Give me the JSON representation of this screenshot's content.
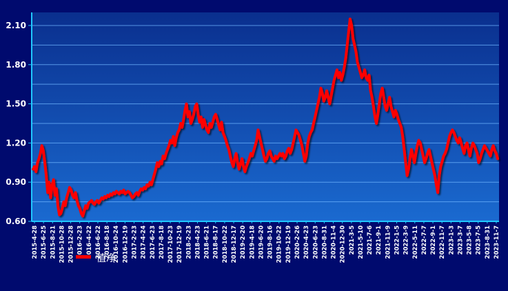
{
  "chart_data": {
    "type": "line",
    "ylim": [
      0.6,
      2.2
    ],
    "y_ticks": [
      "0.60",
      "0.90",
      "1.20",
      "1.50",
      "1.80",
      "2.10"
    ],
    "grid": true,
    "legend_position": "bottom-left",
    "colors": {
      "line": "#ff0000",
      "background": "#000a6e",
      "plot_area": "#0e4fb0",
      "axis": "#20c8ff",
      "text": "#ffffff"
    },
    "x_tick_labels": [
      "2015-4-28",
      "2015-6-25",
      "2015-8-21",
      "2015-10-28",
      "2015-12-28",
      "2016-2-23",
      "2016-4-22",
      "2016-6-22",
      "2016-8-18",
      "2016-10-24",
      "2016-12-19",
      "2017-2-23",
      "2017-4-24",
      "2017-6-23",
      "2017-8-18",
      "2017-10-23",
      "2017-12-19",
      "2018-2-23",
      "2018-4-23",
      "2018-6-21",
      "2018-8-17",
      "2018-10-22",
      "2018-12-17",
      "2019-2-20",
      "2019-4-18",
      "2019-6-20",
      "2019-8-16",
      "2019-10-22",
      "2019-12-19",
      "2020-2-26",
      "2020-4-23",
      "2020-6-23",
      "2020-8-31",
      "2020-11-4",
      "2020-12-30",
      "2021-3-5",
      "2021-5-10",
      "2021-7-6",
      "2021-9-1",
      "2021-11-9",
      "2022-1-5",
      "2022-3-9",
      "2022-5-11",
      "2022-7-7",
      "2022-9-1",
      "2022-11-7",
      "2023-1-3",
      "2023-3-7",
      "2023-5-8",
      "2023-7-5",
      "2023-8-31",
      "2023-11-7"
    ],
    "series": [
      {
        "name": "值净",
        "values": [
          1.0,
          1.02,
          0.98,
          1.05,
          1.08,
          1.12,
          1.18,
          1.14,
          1.05,
          0.95,
          0.82,
          0.9,
          0.78,
          0.88,
          0.92,
          0.8,
          0.85,
          0.72,
          0.65,
          0.66,
          0.7,
          0.75,
          0.72,
          0.78,
          0.82,
          0.86,
          0.84,
          0.8,
          0.78,
          0.82,
          0.76,
          0.72,
          0.7,
          0.66,
          0.64,
          0.68,
          0.72,
          0.7,
          0.74,
          0.75,
          0.76,
          0.74,
          0.73,
          0.75,
          0.76,
          0.74,
          0.76,
          0.78,
          0.77,
          0.79,
          0.78,
          0.8,
          0.79,
          0.81,
          0.8,
          0.82,
          0.81,
          0.83,
          0.82,
          0.81,
          0.83,
          0.82,
          0.84,
          0.81,
          0.82,
          0.83,
          0.82,
          0.8,
          0.78,
          0.79,
          0.81,
          0.82,
          0.8,
          0.83,
          0.85,
          0.84,
          0.86,
          0.85,
          0.88,
          0.87,
          0.9,
          0.88,
          0.92,
          0.96,
          1.0,
          1.05,
          1.02,
          1.06,
          1.04,
          1.1,
          1.08,
          1.12,
          1.15,
          1.18,
          1.22,
          1.2,
          1.25,
          1.18,
          1.24,
          1.28,
          1.3,
          1.35,
          1.32,
          1.38,
          1.45,
          1.5,
          1.4,
          1.44,
          1.35,
          1.38,
          1.42,
          1.48,
          1.5,
          1.42,
          1.36,
          1.4,
          1.32,
          1.38,
          1.34,
          1.3,
          1.28,
          1.35,
          1.32,
          1.36,
          1.4,
          1.42,
          1.38,
          1.34,
          1.3,
          1.36,
          1.28,
          1.25,
          1.22,
          1.18,
          1.15,
          1.1,
          1.05,
          1.02,
          1.08,
          1.12,
          1.05,
          1.0,
          1.04,
          1.08,
          1.02,
          0.98,
          1.02,
          1.05,
          1.08,
          1.12,
          1.1,
          1.14,
          1.18,
          1.22,
          1.3,
          1.25,
          1.2,
          1.15,
          1.1,
          1.06,
          1.08,
          1.12,
          1.14,
          1.1,
          1.08,
          1.06,
          1.1,
          1.08,
          1.1,
          1.12,
          1.1,
          1.12,
          1.08,
          1.1,
          1.14,
          1.16,
          1.12,
          1.15,
          1.2,
          1.25,
          1.3,
          1.28,
          1.26,
          1.22,
          1.18,
          1.12,
          1.06,
          1.1,
          1.2,
          1.25,
          1.28,
          1.3,
          1.35,
          1.4,
          1.45,
          1.5,
          1.55,
          1.62,
          1.58,
          1.52,
          1.55,
          1.6,
          1.55,
          1.5,
          1.56,
          1.62,
          1.68,
          1.72,
          1.76,
          1.7,
          1.74,
          1.68,
          1.72,
          1.78,
          1.85,
          1.95,
          2.05,
          2.15,
          2.1,
          2.0,
          1.95,
          1.9,
          1.82,
          1.78,
          1.74,
          1.7,
          1.72,
          1.76,
          1.7,
          1.68,
          1.72,
          1.6,
          1.55,
          1.48,
          1.4,
          1.35,
          1.42,
          1.5,
          1.58,
          1.62,
          1.55,
          1.48,
          1.45,
          1.5,
          1.55,
          1.48,
          1.44,
          1.4,
          1.45,
          1.42,
          1.38,
          1.35,
          1.32,
          1.25,
          1.15,
          1.05,
          0.95,
          1.0,
          1.08,
          1.15,
          1.1,
          1.05,
          1.12,
          1.18,
          1.22,
          1.2,
          1.15,
          1.1,
          1.05,
          1.08,
          1.12,
          1.15,
          1.1,
          1.05,
          1.0,
          0.95,
          0.88,
          0.82,
          0.95,
          1.02,
          1.06,
          1.1,
          1.12,
          1.15,
          1.2,
          1.25,
          1.28,
          1.3,
          1.28,
          1.25,
          1.22,
          1.2,
          1.24,
          1.2,
          1.16,
          1.12,
          1.18,
          1.2,
          1.15,
          1.1,
          1.16,
          1.2,
          1.18,
          1.15,
          1.12,
          1.05,
          1.08,
          1.12,
          1.15,
          1.18,
          1.16,
          1.14,
          1.12,
          1.1,
          1.15,
          1.18,
          1.14,
          1.12,
          1.08
        ]
      }
    ]
  },
  "legend": {
    "label": "值净"
  }
}
